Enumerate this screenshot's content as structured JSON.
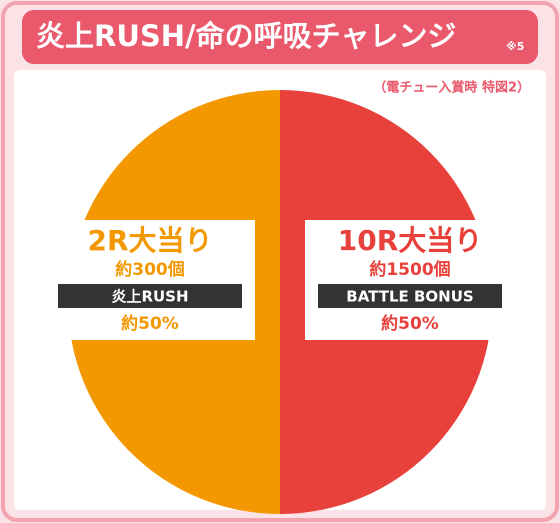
{
  "chart_data": {
    "type": "pie",
    "title": "炎上RUSH/命の呼吸チャレンジ",
    "title_note": "※5",
    "subtitle": "（電チュー入賞時 特図2）",
    "categories": [
      "2R大当り",
      "10R大当り"
    ],
    "payouts": [
      "約300個",
      "約1500個"
    ],
    "modes": [
      "炎上RUSH",
      "BATTLE BONUS"
    ],
    "values": [
      50,
      50
    ],
    "value_labels": [
      "約50%",
      "約50%"
    ],
    "colors": [
      "#f39800",
      "#e8403b"
    ]
  }
}
